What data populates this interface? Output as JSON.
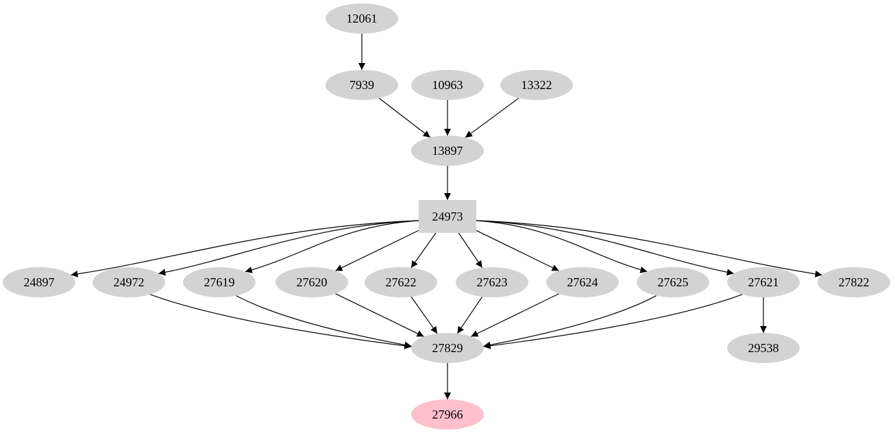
{
  "graph": {
    "default_node_color": "#d3d3d3",
    "highlight_node_color": "#ffc0cb",
    "edge_color": "#000000",
    "nodes": [
      {
        "id": "12061",
        "label": "12061",
        "shape": "ellipse",
        "color": "#d3d3d3"
      },
      {
        "id": "7939",
        "label": "7939",
        "shape": "ellipse",
        "color": "#d3d3d3"
      },
      {
        "id": "10963",
        "label": "10963",
        "shape": "ellipse",
        "color": "#d3d3d3"
      },
      {
        "id": "13322",
        "label": "13322",
        "shape": "ellipse",
        "color": "#d3d3d3"
      },
      {
        "id": "13897",
        "label": "13897",
        "shape": "ellipse",
        "color": "#d3d3d3"
      },
      {
        "id": "24973",
        "label": "24973",
        "shape": "box",
        "color": "#d3d3d3"
      },
      {
        "id": "24897",
        "label": "24897",
        "shape": "ellipse",
        "color": "#d3d3d3"
      },
      {
        "id": "24972",
        "label": "24972",
        "shape": "ellipse",
        "color": "#d3d3d3"
      },
      {
        "id": "27619",
        "label": "27619",
        "shape": "ellipse",
        "color": "#d3d3d3"
      },
      {
        "id": "27620",
        "label": "27620",
        "shape": "ellipse",
        "color": "#d3d3d3"
      },
      {
        "id": "27622",
        "label": "27622",
        "shape": "ellipse",
        "color": "#d3d3d3"
      },
      {
        "id": "27623",
        "label": "27623",
        "shape": "ellipse",
        "color": "#d3d3d3"
      },
      {
        "id": "27624",
        "label": "27624",
        "shape": "ellipse",
        "color": "#d3d3d3"
      },
      {
        "id": "27625",
        "label": "27625",
        "shape": "ellipse",
        "color": "#d3d3d3"
      },
      {
        "id": "27621",
        "label": "27621",
        "shape": "ellipse",
        "color": "#d3d3d3"
      },
      {
        "id": "27822",
        "label": "27822",
        "shape": "ellipse",
        "color": "#d3d3d3"
      },
      {
        "id": "27829",
        "label": "27829",
        "shape": "ellipse",
        "color": "#d3d3d3"
      },
      {
        "id": "29538",
        "label": "29538",
        "shape": "ellipse",
        "color": "#d3d3d3"
      },
      {
        "id": "27966",
        "label": "27966",
        "shape": "ellipse",
        "color": "#ffc0cb"
      }
    ],
    "edges": [
      [
        "12061",
        "7939"
      ],
      [
        "7939",
        "13897"
      ],
      [
        "10963",
        "13897"
      ],
      [
        "13322",
        "13897"
      ],
      [
        "13897",
        "24973"
      ],
      [
        "24973",
        "24897"
      ],
      [
        "24973",
        "24972"
      ],
      [
        "24973",
        "27619"
      ],
      [
        "24973",
        "27620"
      ],
      [
        "24973",
        "27622"
      ],
      [
        "24973",
        "27623"
      ],
      [
        "24973",
        "27624"
      ],
      [
        "24973",
        "27625"
      ],
      [
        "24973",
        "27621"
      ],
      [
        "24973",
        "27822"
      ],
      [
        "24972",
        "27829"
      ],
      [
        "27619",
        "27829"
      ],
      [
        "27620",
        "27829"
      ],
      [
        "27622",
        "27829"
      ],
      [
        "27623",
        "27829"
      ],
      [
        "27624",
        "27829"
      ],
      [
        "27625",
        "27829"
      ],
      [
        "27621",
        "27829"
      ],
      [
        "27621",
        "29538"
      ],
      [
        "27829",
        "27966"
      ]
    ]
  }
}
